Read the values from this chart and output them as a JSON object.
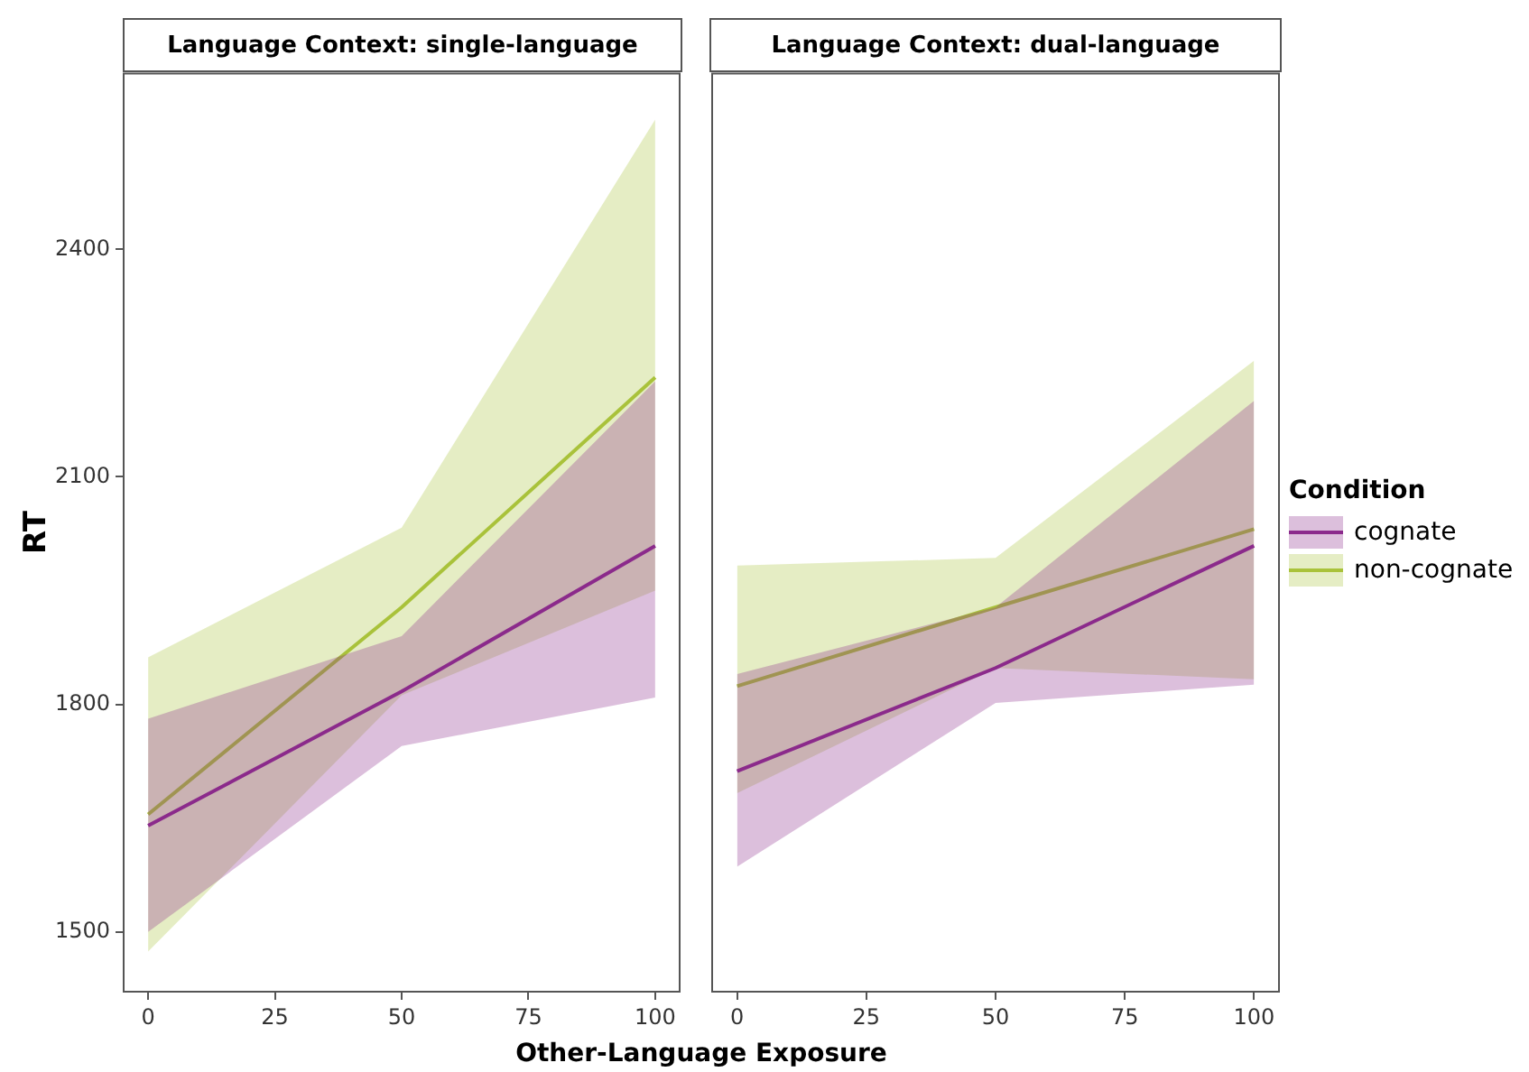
{
  "chart_data": [
    {
      "type": "line",
      "title": "Language Context: single-language",
      "xlabel": "Other-Language Exposure",
      "ylabel": "RT",
      "x": [
        0,
        50,
        100
      ],
      "xlim": [
        -5,
        105
      ],
      "xticks": [
        0,
        25,
        50,
        75,
        100
      ],
      "ylim": [
        1420,
        2633
      ],
      "yticks": [
        1500,
        1800,
        2100,
        2400
      ],
      "grid": false,
      "tick_labels": "xy",
      "series": [
        {
          "color": "#8b2a8c",
          "values": [
            1640,
            1817,
            2009
          ],
          "lower": [
            1500,
            1745,
            1809
          ],
          "upper": [
            1781,
            1890,
            2226
          ]
        },
        {
          "color": "#a9c23a",
          "values": [
            1655,
            1928,
            2231
          ],
          "lower": [
            1474,
            1812,
            1950
          ],
          "upper": [
            1862,
            2033,
            2571
          ]
        }
      ]
    },
    {
      "type": "line",
      "title": "Language Context: dual-language",
      "x": [
        0,
        50,
        100
      ],
      "xlim": [
        -5,
        105
      ],
      "xticks": [
        0,
        25,
        50,
        75,
        100
      ],
      "ylim": [
        1420,
        2633
      ],
      "grid": false,
      "legend": "right",
      "legend_title": "Condition",
      "tick_labels": "x",
      "series": [
        {
          "name": "cognate",
          "color": "#8b2a8c",
          "values": [
            1712,
            1848,
            2009
          ],
          "lower": [
            1586,
            1802,
            1826
          ],
          "upper": [
            1840,
            1928,
            2200
          ]
        },
        {
          "name": "non-cognate",
          "color": "#a9c23a",
          "values": [
            1824,
            1928,
            2031
          ],
          "lower": [
            1683,
            1848,
            1833
          ],
          "upper": [
            1983,
            1993,
            2253
          ]
        }
      ]
    }
  ]
}
